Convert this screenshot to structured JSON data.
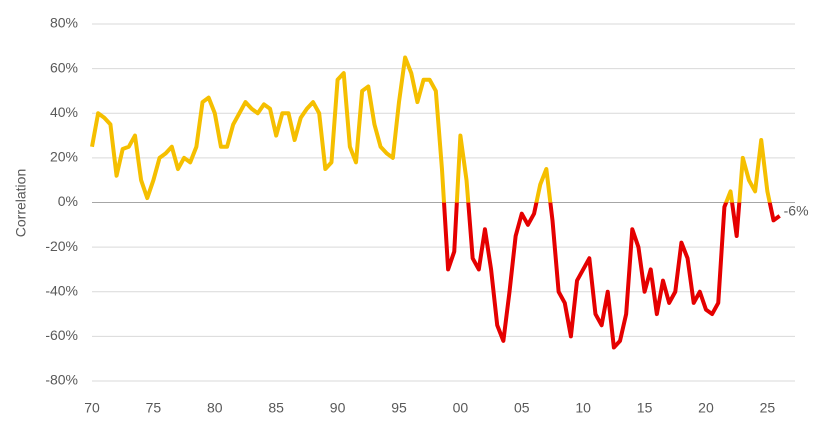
{
  "chart_data": {
    "type": "line",
    "ylabel": "Correlation",
    "x": [
      1970,
      1970.5,
      1971,
      1971.5,
      1972,
      1972.5,
      1973,
      1973.5,
      1974,
      1974.5,
      1975,
      1975.5,
      1976,
      1976.5,
      1977,
      1977.5,
      1978,
      1978.5,
      1979,
      1979.5,
      1980,
      1980.5,
      1981,
      1981.5,
      1982,
      1982.5,
      1983,
      1983.5,
      1984,
      1984.5,
      1985,
      1985.5,
      1986,
      1986.5,
      1987,
      1987.5,
      1988,
      1988.5,
      1989,
      1989.5,
      1990,
      1990.5,
      1991,
      1991.5,
      1992,
      1992.5,
      1993,
      1993.5,
      1994,
      1994.5,
      1995,
      1995.5,
      1996,
      1996.5,
      1997,
      1997.5,
      1998,
      1998.5,
      1999,
      1999.5,
      2000,
      2000.5,
      2001,
      2001.5,
      2002,
      2002.5,
      2003,
      2003.5,
      2004,
      2004.5,
      2005,
      2005.5,
      2006,
      2006.5,
      2007,
      2007.5,
      2008,
      2008.5,
      2009,
      2009.5,
      2010,
      2010.5,
      2011,
      2011.5,
      2012,
      2012.5,
      2013,
      2013.5,
      2014,
      2014.5,
      2015,
      2015.5,
      2016,
      2016.5,
      2017,
      2017.5,
      2018,
      2018.5,
      2019,
      2019.5,
      2020,
      2020.5,
      2021,
      2021.5,
      2022,
      2022.5,
      2023,
      2023.5,
      2024,
      2024.5,
      2025,
      2025.5,
      2026
    ],
    "series": [
      {
        "color": "#f5bf00",
        "negative_color": "#e50000",
        "values": [
          25,
          40,
          38,
          35,
          12,
          24,
          25,
          30,
          10,
          2,
          10,
          20,
          22,
          25,
          15,
          20,
          18,
          25,
          45,
          47,
          40,
          25,
          25,
          35,
          40,
          45,
          42,
          40,
          44,
          42,
          30,
          40,
          40,
          28,
          38,
          42,
          45,
          40,
          15,
          18,
          55,
          58,
          25,
          18,
          50,
          52,
          35,
          25,
          22,
          20,
          45,
          65,
          58,
          45,
          55,
          55,
          50,
          15,
          -30,
          -22,
          30,
          10,
          -25,
          -30,
          -12,
          -30,
          -55,
          -62,
          -40,
          -15,
          -5,
          -10,
          -5,
          8,
          15,
          -8,
          -40,
          -45,
          -60,
          -35,
          -30,
          -25,
          -50,
          -55,
          -40,
          -65,
          -62,
          -50,
          -12,
          -20,
          -40,
          -30,
          -50,
          -35,
          -45,
          -40,
          -18,
          -25,
          -45,
          -40,
          -48,
          -50,
          -45,
          -2,
          5,
          -15,
          20,
          10,
          5,
          28,
          5,
          -8,
          -6
        ]
      }
    ],
    "annotation": {
      "text": "-6%",
      "x": 2026,
      "y": -6
    },
    "xlim": [
      1970,
      2027.25
    ],
    "xticks": [
      {
        "value": 1970,
        "label": "70"
      },
      {
        "value": 1975,
        "label": "75"
      },
      {
        "value": 1980,
        "label": "80"
      },
      {
        "value": 1985,
        "label": "85"
      },
      {
        "value": 1990,
        "label": "90"
      },
      {
        "value": 1995,
        "label": "95"
      },
      {
        "value": 2000,
        "label": "00"
      },
      {
        "value": 2005,
        "label": "05"
      },
      {
        "value": 2010,
        "label": "10"
      },
      {
        "value": 2015,
        "label": "15"
      },
      {
        "value": 2020,
        "label": "20"
      },
      {
        "value": 2025,
        "label": "25"
      }
    ],
    "ylim": [
      -80,
      80
    ],
    "yticks": [
      {
        "value": -80,
        "label": "-80%"
      },
      {
        "value": -60,
        "label": "-60%"
      },
      {
        "value": -40,
        "label": "-40%"
      },
      {
        "value": -20,
        "label": "-20%"
      },
      {
        "value": 0,
        "label": "0%"
      },
      {
        "value": 20,
        "label": "20%"
      },
      {
        "value": 40,
        "label": "40%"
      },
      {
        "value": 60,
        "label": "60%"
      },
      {
        "value": 80,
        "label": "80%"
      }
    ],
    "grid": true
  }
}
